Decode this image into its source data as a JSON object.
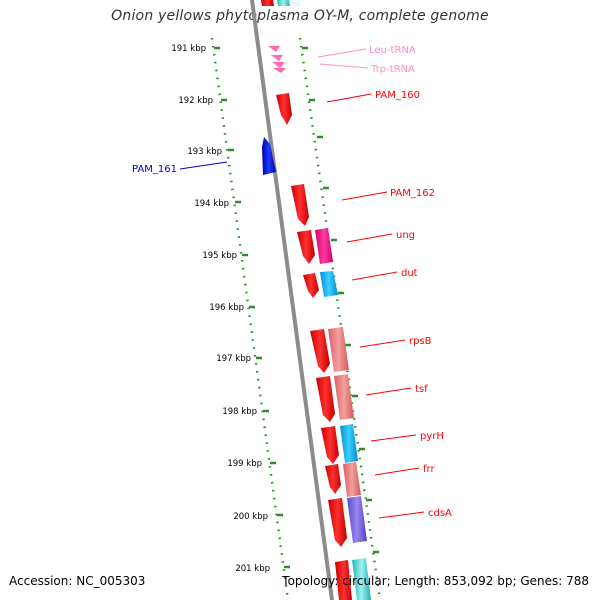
{
  "title": "Onion yellows phytoplasma OY-M, complete genome",
  "footer": {
    "accession": "Accession: NC_005303",
    "summary": "Topology: circular; Length: 853,092 bp; Genes: 788"
  },
  "colors": {
    "backbone": "#888888",
    "ruler": "#2e8b2e",
    "gene_red": "#ff0000",
    "gene_blue": "#0000ff",
    "trna": "#ff69b4",
    "cog_magenta": "#ff1493",
    "cog_cyan": "#00bfff",
    "cog_salmon": "#f08080",
    "cog_purple": "#7b68ee"
  },
  "ruler_labels": [
    "191 kbp",
    "192 kbp",
    "193 kbp",
    "194 kbp",
    "195 kbp",
    "196 kbp",
    "197 kbp",
    "198 kbp",
    "199 kbp",
    "200 kbp",
    "201 kbp"
  ],
  "genes": [
    {
      "label": "Leu-tRNA",
      "type": "trna"
    },
    {
      "label": "Trp-tRNA",
      "type": "trna"
    },
    {
      "label": "PAM_160",
      "type": "cds",
      "strand": "+"
    },
    {
      "label": "PAM_161",
      "type": "cds",
      "strand": "-"
    },
    {
      "label": "PAM_162",
      "type": "cds",
      "strand": "+"
    },
    {
      "label": "ung",
      "type": "cds",
      "strand": "+",
      "cog": "magenta"
    },
    {
      "label": "dut",
      "type": "cds",
      "strand": "+",
      "cog": "cyan"
    },
    {
      "label": "rpsB",
      "type": "cds",
      "strand": "+",
      "cog": "salmon"
    },
    {
      "label": "tsf",
      "type": "cds",
      "strand": "+",
      "cog": "salmon"
    },
    {
      "label": "pyrH",
      "type": "cds",
      "strand": "+",
      "cog": "cyan"
    },
    {
      "label": "frr",
      "type": "cds",
      "strand": "+",
      "cog": "salmon"
    },
    {
      "label": "cdsA",
      "type": "cds",
      "strand": "+",
      "cog": "purple"
    }
  ]
}
